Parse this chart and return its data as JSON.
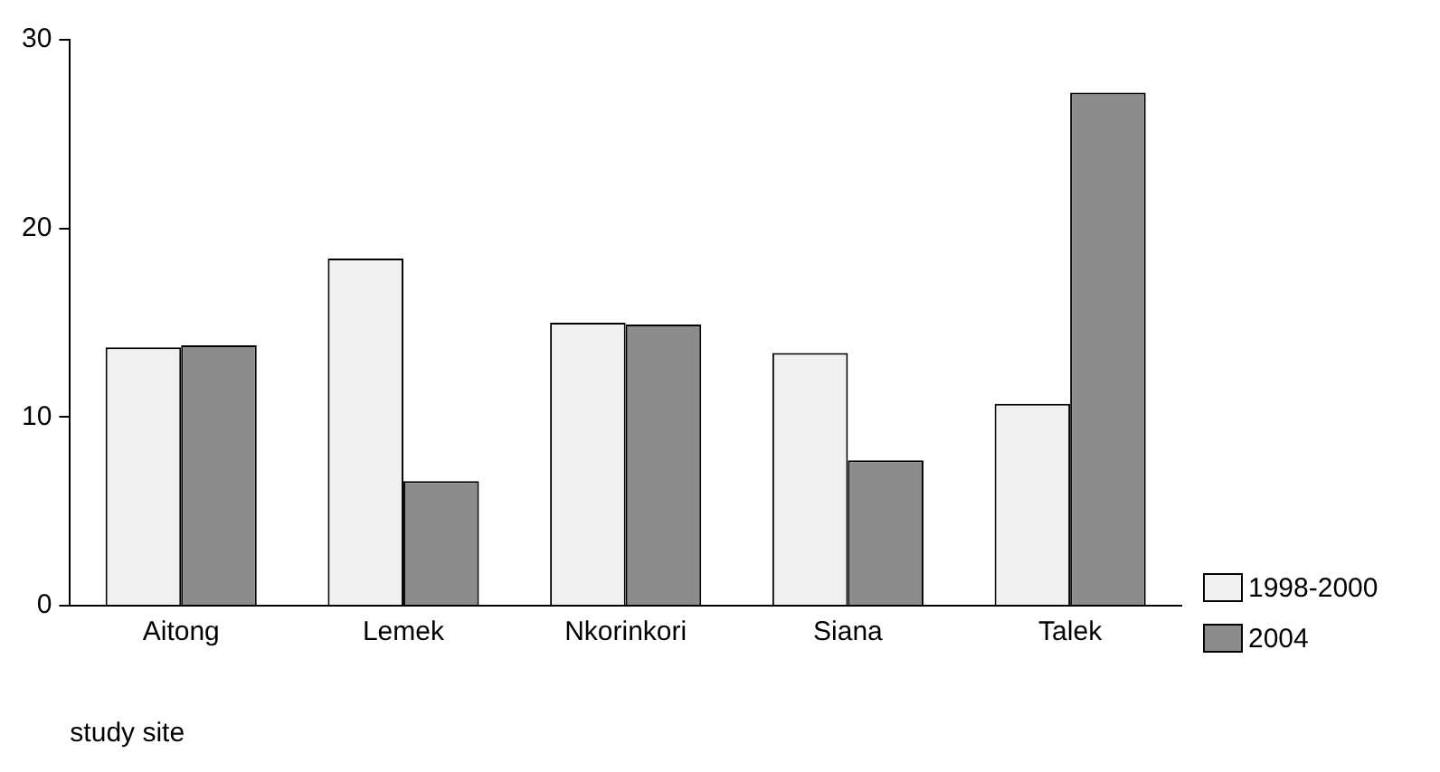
{
  "chart_data": {
    "type": "bar",
    "xlabel": "study site",
    "categories": [
      "Aitong",
      "Lemek",
      "Nkorinkori",
      "Siana",
      "Talek"
    ],
    "series": [
      {
        "name": "1998-2000",
        "color": "#f0f0f0",
        "values": [
          13.7,
          18.4,
          15.0,
          13.4,
          10.7
        ]
      },
      {
        "name": "2004",
        "color": "#8c8c8c",
        "values": [
          13.8,
          6.6,
          14.9,
          7.7,
          27.2
        ]
      }
    ],
    "ylim": [
      0,
      30
    ],
    "yticks": [
      0,
      10,
      20,
      30
    ],
    "grid": false,
    "legend": "bottom right"
  }
}
